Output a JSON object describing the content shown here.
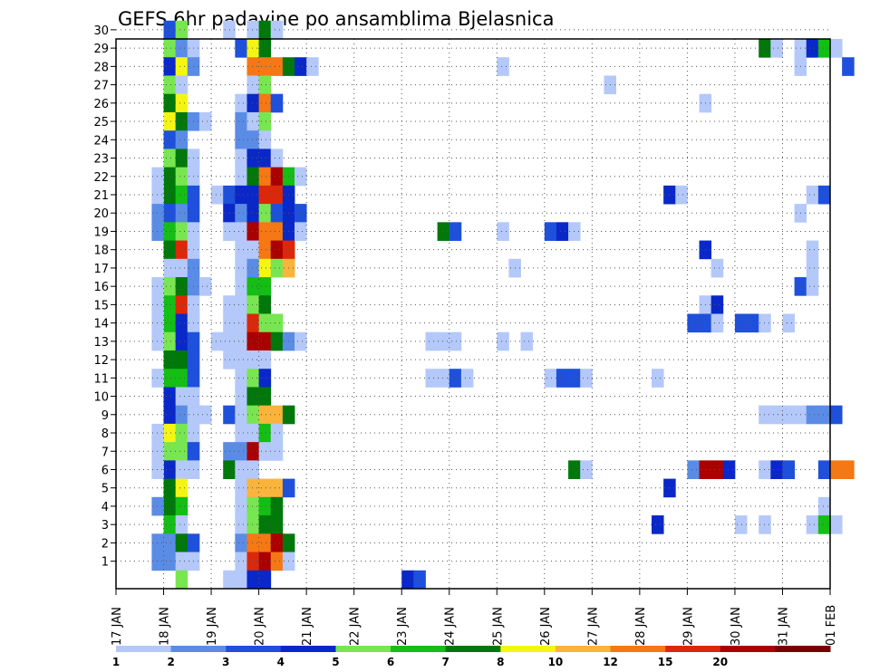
{
  "chart_data": {
    "type": "heatmap",
    "title": "GEFS 6hr padavine po ansamblima Bjelasnica",
    "xlabel": "",
    "ylabel": "",
    "x_ticks": [
      "17 JAN",
      "18 JAN",
      "19 JAN",
      "20 JAN",
      "21 JAN",
      "22 JAN",
      "23 JAN",
      "24 JAN",
      "25 JAN",
      "26 JAN",
      "27 JAN",
      "28 JAN",
      "29 JAN",
      "30 JAN",
      "31 JAN",
      "01 FEB"
    ],
    "y_ticks": [
      "1",
      "2",
      "3",
      "4",
      "5",
      "6",
      "7",
      "8",
      "9",
      "10",
      "11",
      "12",
      "13",
      "14",
      "15",
      "16",
      "17",
      "18",
      "19",
      "20",
      "21",
      "22",
      "23",
      "24",
      "25",
      "26",
      "27",
      "28",
      "29",
      "30"
    ],
    "xlim": [
      0,
      60
    ],
    "ylim": [
      0,
      30
    ],
    "x_unit": "6-hour step from 17 JAN 00Z",
    "y_unit": "ensemble member",
    "grid": true,
    "legend": {
      "placement": "bottom",
      "labels": [
        "1",
        "2",
        "3",
        "4",
        "5",
        "6",
        "7",
        "8",
        "10",
        "12",
        "15",
        "20"
      ],
      "colors": [
        "#b4c8fa",
        "#5a8ce6",
        "#1e50dc",
        "#0a28c8",
        "#78e650",
        "#14be14",
        "#00780a",
        "#f5f514",
        "#fab43c",
        "#f57814",
        "#dc280a",
        "#aa0000",
        "#780000"
      ]
    },
    "cells": [
      [
        4,
        30,
        2
      ],
      [
        4,
        29,
        4
      ],
      [
        4,
        28,
        3
      ],
      [
        4,
        27,
        4
      ],
      [
        4,
        26,
        6
      ],
      [
        4,
        25,
        7
      ],
      [
        4,
        24,
        2
      ],
      [
        4,
        23,
        4
      ],
      [
        4,
        22,
        6
      ],
      [
        4,
        21,
        6
      ],
      [
        4,
        20,
        2
      ],
      [
        4,
        19,
        5
      ],
      [
        4,
        18,
        6
      ],
      [
        4,
        17,
        0
      ],
      [
        4,
        16,
        4
      ],
      [
        4,
        15,
        5
      ],
      [
        4,
        14,
        5
      ],
      [
        4,
        13,
        4
      ],
      [
        4,
        12,
        6
      ],
      [
        4,
        11,
        5
      ],
      [
        4,
        10,
        3
      ],
      [
        4,
        9,
        3
      ],
      [
        4,
        8,
        7
      ],
      [
        4,
        7,
        4
      ],
      [
        4,
        6,
        3
      ],
      [
        4,
        5,
        6
      ],
      [
        4,
        4,
        6
      ],
      [
        4,
        3,
        5
      ],
      [
        4,
        2,
        1
      ],
      [
        4,
        1,
        1
      ],
      [
        5,
        30,
        4
      ],
      [
        5,
        29,
        1
      ],
      [
        5,
        28,
        7
      ],
      [
        5,
        27,
        0
      ],
      [
        5,
        26,
        7
      ],
      [
        5,
        25,
        6
      ],
      [
        5,
        24,
        1
      ],
      [
        5,
        23,
        6
      ],
      [
        5,
        22,
        4
      ],
      [
        5,
        21,
        5
      ],
      [
        5,
        20,
        1
      ],
      [
        5,
        19,
        4
      ],
      [
        5,
        18,
        10
      ],
      [
        5,
        17,
        0
      ],
      [
        5,
        16,
        6
      ],
      [
        5,
        15,
        10
      ],
      [
        5,
        14,
        3
      ],
      [
        5,
        13,
        3
      ],
      [
        5,
        12,
        6
      ],
      [
        5,
        11,
        5
      ],
      [
        5,
        10,
        0
      ],
      [
        5,
        9,
        1
      ],
      [
        5,
        8,
        4
      ],
      [
        5,
        7,
        4
      ],
      [
        5,
        6,
        0
      ],
      [
        5,
        5,
        7
      ],
      [
        5,
        4,
        5
      ],
      [
        5,
        3,
        0
      ],
      [
        5,
        2,
        6
      ],
      [
        5,
        1,
        0
      ],
      [
        5,
        0,
        4
      ],
      [
        3,
        22,
        0
      ],
      [
        3,
        21,
        0
      ],
      [
        3,
        20,
        1
      ],
      [
        3,
        19,
        1
      ],
      [
        3,
        16,
        0
      ],
      [
        3,
        15,
        0
      ],
      [
        3,
        14,
        0
      ],
      [
        3,
        13,
        0
      ],
      [
        3,
        11,
        0
      ],
      [
        3,
        8,
        0
      ],
      [
        3,
        7,
        0
      ],
      [
        3,
        6,
        0
      ],
      [
        3,
        4,
        1
      ],
      [
        3,
        2,
        1
      ],
      [
        3,
        1,
        1
      ],
      [
        6,
        29,
        0
      ],
      [
        6,
        28,
        1
      ],
      [
        6,
        25,
        1
      ],
      [
        6,
        23,
        0
      ],
      [
        6,
        22,
        0
      ],
      [
        6,
        21,
        2
      ],
      [
        6,
        20,
        2
      ],
      [
        6,
        19,
        0
      ],
      [
        6,
        18,
        0
      ],
      [
        6,
        17,
        1
      ],
      [
        6,
        16,
        1
      ],
      [
        6,
        15,
        0
      ],
      [
        6,
        14,
        0
      ],
      [
        6,
        13,
        2
      ],
      [
        6,
        12,
        2
      ],
      [
        6,
        11,
        2
      ],
      [
        6,
        10,
        0
      ],
      [
        6,
        9,
        0
      ],
      [
        6,
        8,
        0
      ],
      [
        6,
        7,
        2
      ],
      [
        6,
        6,
        0
      ],
      [
        6,
        2,
        2
      ],
      [
        6,
        1,
        0
      ],
      [
        7,
        25,
        0
      ],
      [
        7,
        16,
        0
      ],
      [
        7,
        9,
        0
      ],
      [
        8,
        21,
        0
      ],
      [
        8,
        13,
        0
      ],
      [
        9,
        30,
        0
      ],
      [
        9,
        21,
        2
      ],
      [
        9,
        20,
        3
      ],
      [
        9,
        19,
        0
      ],
      [
        9,
        15,
        0
      ],
      [
        9,
        14,
        0
      ],
      [
        9,
        13,
        0
      ],
      [
        9,
        12,
        0
      ],
      [
        9,
        9,
        2
      ],
      [
        9,
        7,
        1
      ],
      [
        9,
        6,
        6
      ],
      [
        9,
        0,
        0
      ],
      [
        10,
        29,
        2
      ],
      [
        10,
        26,
        0
      ],
      [
        10,
        25,
        1
      ],
      [
        10,
        24,
        1
      ],
      [
        10,
        23,
        0
      ],
      [
        10,
        22,
        0
      ],
      [
        10,
        21,
        3
      ],
      [
        10,
        20,
        1
      ],
      [
        10,
        19,
        0
      ],
      [
        10,
        18,
        0
      ],
      [
        10,
        17,
        0
      ],
      [
        10,
        16,
        0
      ],
      [
        10,
        15,
        0
      ],
      [
        10,
        14,
        0
      ],
      [
        10,
        13,
        0
      ],
      [
        10,
        12,
        0
      ],
      [
        10,
        11,
        0
      ],
      [
        10,
        10,
        0
      ],
      [
        10,
        9,
        0
      ],
      [
        10,
        8,
        0
      ],
      [
        10,
        7,
        1
      ],
      [
        10,
        6,
        0
      ],
      [
        10,
        5,
        0
      ],
      [
        10,
        4,
        0
      ],
      [
        10,
        3,
        0
      ],
      [
        10,
        2,
        1
      ],
      [
        10,
        1,
        0
      ],
      [
        10,
        0,
        0
      ],
      [
        11,
        30,
        0
      ],
      [
        11,
        29,
        7
      ],
      [
        11,
        28,
        9
      ],
      [
        11,
        27,
        0
      ],
      [
        11,
        26,
        3
      ],
      [
        11,
        25,
        0
      ],
      [
        11,
        24,
        1
      ],
      [
        11,
        23,
        3
      ],
      [
        11,
        22,
        6
      ],
      [
        11,
        21,
        3
      ],
      [
        11,
        20,
        3
      ],
      [
        11,
        19,
        11
      ],
      [
        11,
        18,
        0
      ],
      [
        11,
        17,
        1
      ],
      [
        11,
        16,
        5
      ],
      [
        11,
        15,
        4
      ],
      [
        11,
        14,
        10
      ],
      [
        11,
        13,
        11
      ],
      [
        11,
        12,
        0
      ],
      [
        11,
        11,
        4
      ],
      [
        11,
        10,
        6
      ],
      [
        11,
        9,
        4
      ],
      [
        11,
        8,
        0
      ],
      [
        11,
        7,
        11
      ],
      [
        11,
        6,
        0
      ],
      [
        11,
        5,
        8
      ],
      [
        11,
        4,
        4
      ],
      [
        11,
        3,
        4
      ],
      [
        11,
        2,
        9
      ],
      [
        11,
        1,
        10
      ],
      [
        11,
        0,
        3
      ],
      [
        12,
        30,
        6
      ],
      [
        12,
        29,
        6
      ],
      [
        12,
        28,
        9
      ],
      [
        12,
        27,
        4
      ],
      [
        12,
        26,
        9
      ],
      [
        12,
        25,
        4
      ],
      [
        12,
        24,
        0
      ],
      [
        12,
        23,
        3
      ],
      [
        12,
        22,
        9
      ],
      [
        12,
        21,
        10
      ],
      [
        12,
        20,
        4
      ],
      [
        12,
        19,
        9
      ],
      [
        12,
        18,
        9
      ],
      [
        12,
        17,
        7
      ],
      [
        12,
        16,
        5
      ],
      [
        12,
        15,
        6
      ],
      [
        12,
        14,
        4
      ],
      [
        12,
        13,
        11
      ],
      [
        12,
        12,
        0
      ],
      [
        12,
        11,
        3
      ],
      [
        12,
        10,
        6
      ],
      [
        12,
        9,
        8
      ],
      [
        12,
        8,
        5
      ],
      [
        12,
        7,
        0
      ],
      [
        12,
        5,
        8
      ],
      [
        12,
        4,
        5
      ],
      [
        12,
        3,
        6
      ],
      [
        12,
        2,
        9
      ],
      [
        12,
        1,
        11
      ],
      [
        12,
        0,
        3
      ],
      [
        13,
        30,
        0
      ],
      [
        13,
        28,
        9
      ],
      [
        13,
        26,
        2
      ],
      [
        13,
        23,
        0
      ],
      [
        13,
        22,
        11
      ],
      [
        13,
        21,
        10
      ],
      [
        13,
        20,
        2
      ],
      [
        13,
        19,
        9
      ],
      [
        13,
        18,
        11
      ],
      [
        13,
        17,
        4
      ],
      [
        13,
        14,
        4
      ],
      [
        13,
        13,
        6
      ],
      [
        13,
        9,
        8
      ],
      [
        13,
        8,
        0
      ],
      [
        13,
        7,
        0
      ],
      [
        13,
        5,
        8
      ],
      [
        13,
        4,
        6
      ],
      [
        13,
        3,
        6
      ],
      [
        13,
        2,
        11
      ],
      [
        13,
        1,
        9
      ],
      [
        14,
        28,
        6
      ],
      [
        14,
        22,
        5
      ],
      [
        14,
        21,
        3
      ],
      [
        14,
        20,
        3
      ],
      [
        14,
        19,
        3
      ],
      [
        14,
        18,
        10
      ],
      [
        14,
        17,
        8
      ],
      [
        14,
        13,
        1
      ],
      [
        14,
        9,
        6
      ],
      [
        14,
        5,
        2
      ],
      [
        14,
        2,
        6
      ],
      [
        14,
        1,
        0
      ],
      [
        15,
        28,
        3
      ],
      [
        15,
        22,
        0
      ],
      [
        15,
        20,
        2
      ],
      [
        15,
        19,
        0
      ],
      [
        15,
        13,
        0
      ],
      [
        16,
        28,
        0
      ],
      [
        24,
        0,
        3
      ],
      [
        25,
        0,
        2
      ],
      [
        26,
        13,
        0
      ],
      [
        26,
        11,
        0
      ],
      [
        27,
        19,
        6
      ],
      [
        27,
        13,
        0
      ],
      [
        27,
        11,
        0
      ],
      [
        28,
        19,
        2
      ],
      [
        28,
        13,
        0
      ],
      [
        28,
        11,
        2
      ],
      [
        29,
        11,
        0
      ],
      [
        32,
        28,
        0
      ],
      [
        32,
        19,
        0
      ],
      [
        32,
        13,
        0
      ],
      [
        33,
        17,
        0
      ],
      [
        34,
        13,
        0
      ],
      [
        36,
        19,
        2
      ],
      [
        36,
        11,
        0
      ],
      [
        37,
        19,
        3
      ],
      [
        37,
        11,
        2
      ],
      [
        38,
        19,
        0
      ],
      [
        38,
        11,
        2
      ],
      [
        38,
        6,
        6
      ],
      [
        39,
        11,
        0
      ],
      [
        39,
        6,
        0
      ],
      [
        41,
        27,
        0
      ],
      [
        45,
        11,
        0
      ],
      [
        45,
        3,
        3
      ],
      [
        46,
        21,
        3
      ],
      [
        46,
        5,
        3
      ],
      [
        47,
        21,
        0
      ],
      [
        48,
        14,
        2
      ],
      [
        48,
        6,
        1
      ],
      [
        49,
        26,
        0
      ],
      [
        49,
        18,
        3
      ],
      [
        49,
        15,
        0
      ],
      [
        49,
        14,
        2
      ],
      [
        49,
        6,
        11
      ],
      [
        50,
        17,
        0
      ],
      [
        50,
        15,
        3
      ],
      [
        50,
        14,
        0
      ],
      [
        50,
        6,
        11
      ],
      [
        51,
        6,
        3
      ],
      [
        52,
        14,
        2
      ],
      [
        52,
        3,
        0
      ],
      [
        53,
        14,
        2
      ],
      [
        54,
        29,
        6
      ],
      [
        54,
        14,
        0
      ],
      [
        54,
        9,
        0
      ],
      [
        54,
        6,
        0
      ],
      [
        54,
        3,
        0
      ],
      [
        55,
        29,
        0
      ],
      [
        55,
        9,
        0
      ],
      [
        55,
        6,
        3
      ],
      [
        56,
        14,
        0
      ],
      [
        56,
        9,
        0
      ],
      [
        56,
        6,
        2
      ],
      [
        57,
        28,
        0
      ],
      [
        57,
        29,
        0
      ],
      [
        57,
        20,
        0
      ],
      [
        57,
        16,
        2
      ],
      [
        57,
        9,
        0
      ],
      [
        58,
        29,
        3
      ],
      [
        58,
        21,
        0
      ],
      [
        58,
        18,
        0
      ],
      [
        58,
        17,
        0
      ],
      [
        58,
        16,
        0
      ],
      [
        58,
        9,
        1
      ],
      [
        58,
        3,
        0
      ],
      [
        59,
        29,
        5
      ],
      [
        59,
        21,
        2
      ],
      [
        59,
        9,
        1
      ],
      [
        59,
        6,
        2
      ],
      [
        59,
        4,
        0
      ],
      [
        59,
        3,
        5
      ],
      [
        60,
        29,
        0
      ],
      [
        60,
        9,
        2
      ],
      [
        60,
        6,
        9
      ],
      [
        60,
        3,
        0
      ],
      [
        61,
        28,
        2
      ],
      [
        61,
        6,
        9
      ]
    ]
  }
}
